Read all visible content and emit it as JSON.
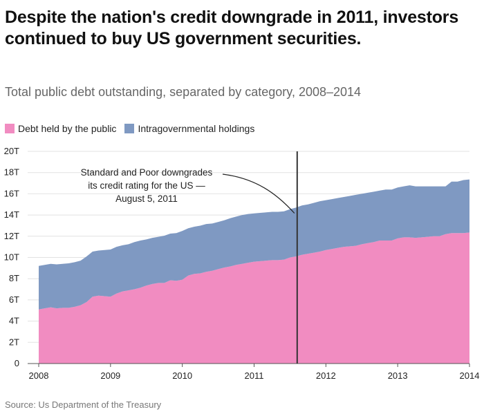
{
  "header": {
    "title": "Despite the nation's credit downgrade in 2011, investors continued to buy US government securities.",
    "subtitle": "Total public debt outstanding, separated by category, 2008–2014"
  },
  "legend": {
    "items": [
      {
        "label": "Debt held by the public",
        "color": "#f18cc1"
      },
      {
        "label": "Intragovernmental holdings",
        "color": "#7f99c2"
      }
    ]
  },
  "footer": {
    "source": "Source: Us Department of the Treasury"
  },
  "chart_data": {
    "type": "area",
    "stacked": true,
    "x": [
      2008.0,
      2008.083,
      2008.167,
      2008.25,
      2008.333,
      2008.417,
      2008.5,
      2008.583,
      2008.667,
      2008.75,
      2008.833,
      2008.917,
      2009.0,
      2009.083,
      2009.167,
      2009.25,
      2009.333,
      2009.417,
      2009.5,
      2009.583,
      2009.667,
      2009.75,
      2009.833,
      2009.917,
      2010.0,
      2010.083,
      2010.167,
      2010.25,
      2010.333,
      2010.417,
      2010.5,
      2010.583,
      2010.667,
      2010.75,
      2010.833,
      2010.917,
      2011.0,
      2011.083,
      2011.167,
      2011.25,
      2011.333,
      2011.417,
      2011.5,
      2011.583,
      2011.667,
      2011.75,
      2011.833,
      2011.917,
      2012.0,
      2012.083,
      2012.167,
      2012.25,
      2012.333,
      2012.417,
      2012.5,
      2012.583,
      2012.667,
      2012.75,
      2012.833,
      2012.917,
      2013.0,
      2013.083,
      2013.167,
      2013.25,
      2013.333,
      2013.417,
      2013.5,
      2013.583,
      2013.667,
      2013.75,
      2013.833,
      2013.917,
      2014.0
    ],
    "series": [
      {
        "name": "Debt held by the public",
        "color": "#f18cc1",
        "values": [
          5.1,
          5.2,
          5.3,
          5.2,
          5.25,
          5.25,
          5.35,
          5.5,
          5.8,
          6.3,
          6.4,
          6.35,
          6.3,
          6.6,
          6.8,
          6.9,
          7.0,
          7.15,
          7.35,
          7.5,
          7.6,
          7.6,
          7.85,
          7.8,
          7.9,
          8.3,
          8.45,
          8.5,
          8.65,
          8.75,
          8.9,
          9.05,
          9.15,
          9.3,
          9.4,
          9.5,
          9.6,
          9.65,
          9.7,
          9.75,
          9.75,
          9.8,
          10.0,
          10.1,
          10.25,
          10.35,
          10.45,
          10.55,
          10.7,
          10.8,
          10.9,
          11.0,
          11.05,
          11.1,
          11.25,
          11.35,
          11.45,
          11.6,
          11.6,
          11.6,
          11.8,
          11.9,
          11.9,
          11.85,
          11.9,
          11.95,
          12.0,
          12.0,
          12.2,
          12.3,
          12.3,
          12.3,
          12.35
        ]
      },
      {
        "name": "Intragovernmental holdings",
        "color": "#7f99c2",
        "values": [
          4.1,
          4.1,
          4.1,
          4.15,
          4.15,
          4.2,
          4.2,
          4.2,
          4.3,
          4.25,
          4.25,
          4.35,
          4.45,
          4.4,
          4.35,
          4.35,
          4.45,
          4.45,
          4.35,
          4.35,
          4.35,
          4.45,
          4.4,
          4.5,
          4.6,
          4.45,
          4.45,
          4.5,
          4.5,
          4.45,
          4.45,
          4.45,
          4.55,
          4.55,
          4.6,
          4.6,
          4.55,
          4.55,
          4.55,
          4.55,
          4.55,
          4.55,
          4.55,
          4.6,
          4.65,
          4.65,
          4.7,
          4.75,
          4.7,
          4.7,
          4.7,
          4.7,
          4.75,
          4.8,
          4.75,
          4.75,
          4.75,
          4.7,
          4.8,
          4.8,
          4.8,
          4.8,
          4.9,
          4.85,
          4.8,
          4.75,
          4.7,
          4.7,
          4.5,
          4.85,
          4.85,
          5.0,
          5.0
        ]
      }
    ],
    "xlim": [
      2008,
      2014
    ],
    "ylim": [
      0,
      20
    ],
    "xticks": [
      2008,
      2009,
      2010,
      2011,
      2012,
      2013,
      2014
    ],
    "xtick_labels": [
      "2008",
      "2009",
      "2010",
      "2011",
      "2012",
      "2013",
      "2014"
    ],
    "yticks": [
      0,
      2,
      4,
      6,
      8,
      10,
      12,
      14,
      16,
      18,
      20
    ],
    "ytick_labels": [
      "0",
      "2T",
      "4T",
      "6T",
      "8T",
      "10T",
      "12T",
      "14T",
      "16T",
      "18T",
      "20T"
    ],
    "grid": true,
    "marker": {
      "x": 2011.6
    },
    "annotation": {
      "lines": [
        "Standard and Poor downgrades",
        "its credit rating for the US —",
        "August 5, 2011"
      ],
      "x": 2011.6,
      "y": 14.3
    }
  }
}
